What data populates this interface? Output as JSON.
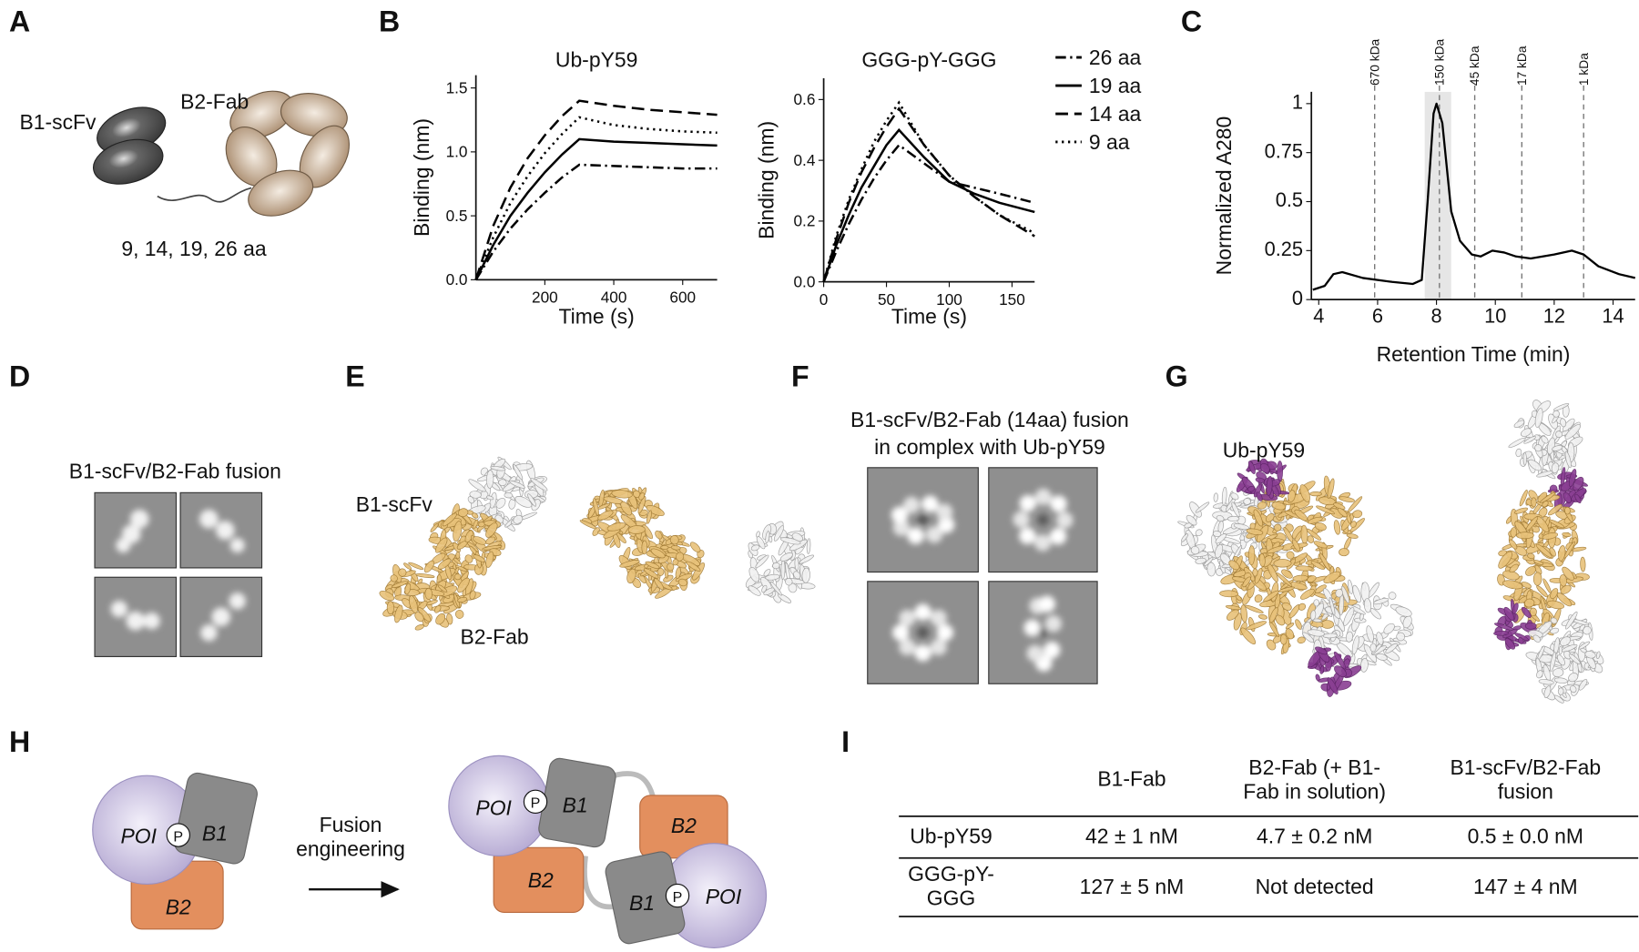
{
  "panel_labels": [
    "A",
    "B",
    "C",
    "D",
    "E",
    "F",
    "G",
    "H",
    "I"
  ],
  "panel_a": {
    "scfv_label": "B1-scFv",
    "fab_label": "B2-Fab",
    "linker_lengths": "9, 14, 19, 26 aa"
  },
  "chart_data": [
    {
      "type": "line",
      "title": "Ub-pY59",
      "xlabel": "Time (s)",
      "ylabel": "Binding (nm)",
      "x": [
        0,
        50,
        100,
        150,
        200,
        250,
        300,
        400,
        500,
        600,
        700
      ],
      "xlim": [
        0,
        700
      ],
      "xticks": [
        200,
        400,
        600
      ],
      "ylim": [
        0,
        1.6
      ],
      "yticks": [
        {
          "value": 0,
          "label": "0.0"
        },
        0.5,
        {
          "value": 1,
          "label": "1.0"
        },
        1.5
      ],
      "series": [
        {
          "name": "26 aa",
          "color": "#000000",
          "dash": "dashdot",
          "values": [
            0,
            0.22,
            0.4,
            0.55,
            0.68,
            0.8,
            0.9,
            0.89,
            0.88,
            0.87,
            0.87
          ]
        },
        {
          "name": "19 aa",
          "color": "#000000",
          "dash": "solid",
          "values": [
            0,
            0.27,
            0.5,
            0.68,
            0.84,
            0.98,
            1.1,
            1.08,
            1.07,
            1.06,
            1.05
          ]
        },
        {
          "name": "14 aa",
          "color": "#000000",
          "dash": "dashed",
          "values": [
            0,
            0.42,
            0.72,
            0.95,
            1.13,
            1.28,
            1.4,
            1.36,
            1.33,
            1.31,
            1.29
          ]
        },
        {
          "name": "9 aa",
          "color": "#000000",
          "dash": "dotted",
          "values": [
            0,
            0.33,
            0.6,
            0.81,
            0.99,
            1.14,
            1.27,
            1.21,
            1.18,
            1.16,
            1.15
          ]
        }
      ]
    },
    {
      "type": "line",
      "title": "GGG-pY-GGG",
      "xlabel": "Time (s)",
      "ylabel": "Binding (nm)",
      "legend": "right",
      "x": [
        0,
        10,
        20,
        30,
        40,
        50,
        60,
        80,
        100,
        120,
        140,
        168
      ],
      "xlim": [
        0,
        168
      ],
      "xticks": [
        0,
        50,
        100,
        150
      ],
      "ylim": [
        0,
        0.67
      ],
      "yticks": [
        {
          "value": 0,
          "label": "0.0"
        },
        0.2,
        0.4,
        0.6
      ],
      "series": [
        {
          "name": "26 aa",
          "color": "#000000",
          "dash": "dashdot",
          "values": [
            0,
            0.1,
            0.19,
            0.27,
            0.34,
            0.4,
            0.45,
            0.39,
            0.33,
            0.31,
            0.29,
            0.26
          ]
        },
        {
          "name": "19 aa",
          "color": "#000000",
          "dash": "solid",
          "values": [
            0,
            0.12,
            0.22,
            0.31,
            0.38,
            0.45,
            0.5,
            0.41,
            0.33,
            0.29,
            0.26,
            0.23
          ]
        },
        {
          "name": "14 aa",
          "color": "#000000",
          "dash": "dashed",
          "values": [
            0,
            0.14,
            0.26,
            0.36,
            0.44,
            0.51,
            0.57,
            0.45,
            0.35,
            0.28,
            0.22,
            0.15
          ]
        },
        {
          "name": "9 aa",
          "color": "#000000",
          "dash": "dotted",
          "values": [
            0,
            0.15,
            0.27,
            0.37,
            0.46,
            0.53,
            0.59,
            0.45,
            0.35,
            0.28,
            0.22,
            0.16
          ]
        }
      ]
    },
    {
      "type": "line",
      "xlabel": "Retention Time (min)",
      "ylabel": "Normalized A280",
      "color": "#000000",
      "x": [
        3.8,
        4.2,
        4.5,
        4.8,
        5.5,
        6.5,
        7.2,
        7.5,
        7.7,
        7.9,
        8.0,
        8.2,
        8.5,
        8.8,
        9.2,
        9.5,
        9.9,
        10.3,
        10.7,
        11.2,
        12,
        12.6,
        13,
        13.5,
        14.2,
        14.75
      ],
      "values": [
        0.05,
        0.07,
        0.13,
        0.14,
        0.11,
        0.09,
        0.08,
        0.1,
        0.5,
        0.95,
        1.0,
        0.9,
        0.45,
        0.3,
        0.23,
        0.22,
        0.25,
        0.24,
        0.22,
        0.21,
        0.23,
        0.25,
        0.23,
        0.17,
        0.13,
        0.11
      ],
      "xlim": [
        3.75,
        14.75
      ],
      "xticks": [
        4,
        6,
        8,
        10,
        12,
        14
      ],
      "ylim": [
        0,
        1.06
      ],
      "yticks": [
        0,
        0.25,
        0.5,
        0.75,
        1
      ],
      "highlight": [
        7.6,
        8.5
      ],
      "highlight_color": "#e6e6e6",
      "markers": [
        {
          "x": 5.9,
          "label": "670 kDa"
        },
        {
          "x": 8.1,
          "label": "150 kDa"
        },
        {
          "x": 9.3,
          "label": "45 kDa"
        },
        {
          "x": 10.9,
          "label": "17 kDa"
        },
        {
          "x": 13.0,
          "label": "1 kDa"
        }
      ]
    }
  ],
  "panel_d": {
    "title": "B1-scFv/B2-Fab fusion"
  },
  "panel_e": {
    "scfv_label": "B1-scFv",
    "fab_label": "B2-Fab"
  },
  "panel_f": {
    "title": "B1-scFv/B2-Fab (14aa) fusion",
    "subtitle": "in complex with Ub-pY59"
  },
  "panel_g": {
    "label": "Ub-pY59"
  },
  "panel_h": {
    "poi": "POI",
    "phospho": "P",
    "b1": "B1",
    "b2": "B2",
    "arrow_line1": "Fusion",
    "arrow_line2": "engineering"
  },
  "table": {
    "header": [
      "B1-Fab",
      "B2-Fab (+ B1-Fab in solution)",
      "B1-scFv/B2-Fab fusion"
    ],
    "rows": [
      [
        "Ub-pY59",
        "42 ± 1 nM",
        "4.7 ± 0.2 nM",
        "0.5 ± 0.0 nM"
      ],
      [
        "GGG-pY-GGG",
        "127 ± 5 nM",
        "Not detected",
        "147 ± 4 nM"
      ]
    ]
  }
}
